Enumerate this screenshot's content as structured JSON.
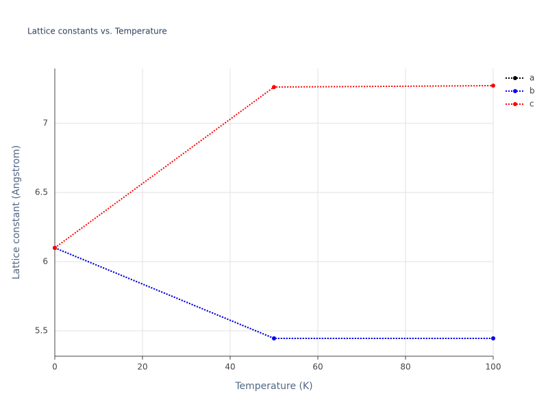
{
  "chart_data": {
    "type": "line",
    "title": "Lattice constants vs. Temperature",
    "xlabel": "Temperature (K)",
    "ylabel": "Lattice constant (Angstrom)",
    "x": [
      0,
      50,
      100
    ],
    "series": [
      {
        "name": "a",
        "color": "#000000",
        "values": [
          6.1,
          5.446,
          5.446
        ]
      },
      {
        "name": "b",
        "color": "#0000ff",
        "values": [
          6.1,
          5.446,
          5.446
        ]
      },
      {
        "name": "c",
        "color": "#ff0000",
        "values": [
          6.1,
          7.262,
          7.272
        ]
      }
    ],
    "xlim": [
      0,
      100
    ],
    "xticks": [
      0,
      20,
      40,
      60,
      80,
      100
    ],
    "ylim": [
      5.317,
      7.396
    ],
    "yticks": [
      5.5,
      6,
      6.5,
      7
    ],
    "grid": true,
    "legend": "right"
  }
}
